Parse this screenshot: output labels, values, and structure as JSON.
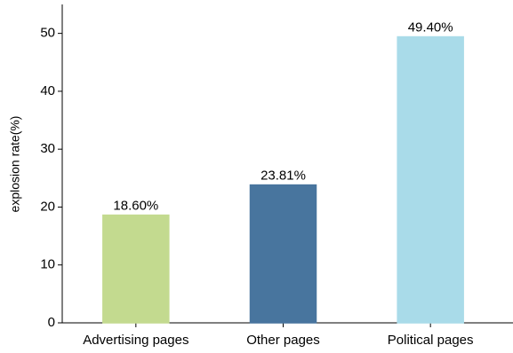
{
  "chart_data": {
    "type": "bar",
    "y_label": "explosion rate(%)",
    "categories": [
      "Advertising pages",
      "Other pages",
      "Political pages"
    ],
    "values": [
      18.6,
      23.81,
      49.4
    ],
    "value_labels": [
      "18.60%",
      "23.81%",
      "49.40%"
    ],
    "colors": [
      "#c3da8f",
      "#48759e",
      "#a9dbe9"
    ],
    "ylim": [
      0,
      55
    ],
    "yticks": [
      0,
      10,
      20,
      30,
      40,
      50
    ],
    "grid": false
  }
}
